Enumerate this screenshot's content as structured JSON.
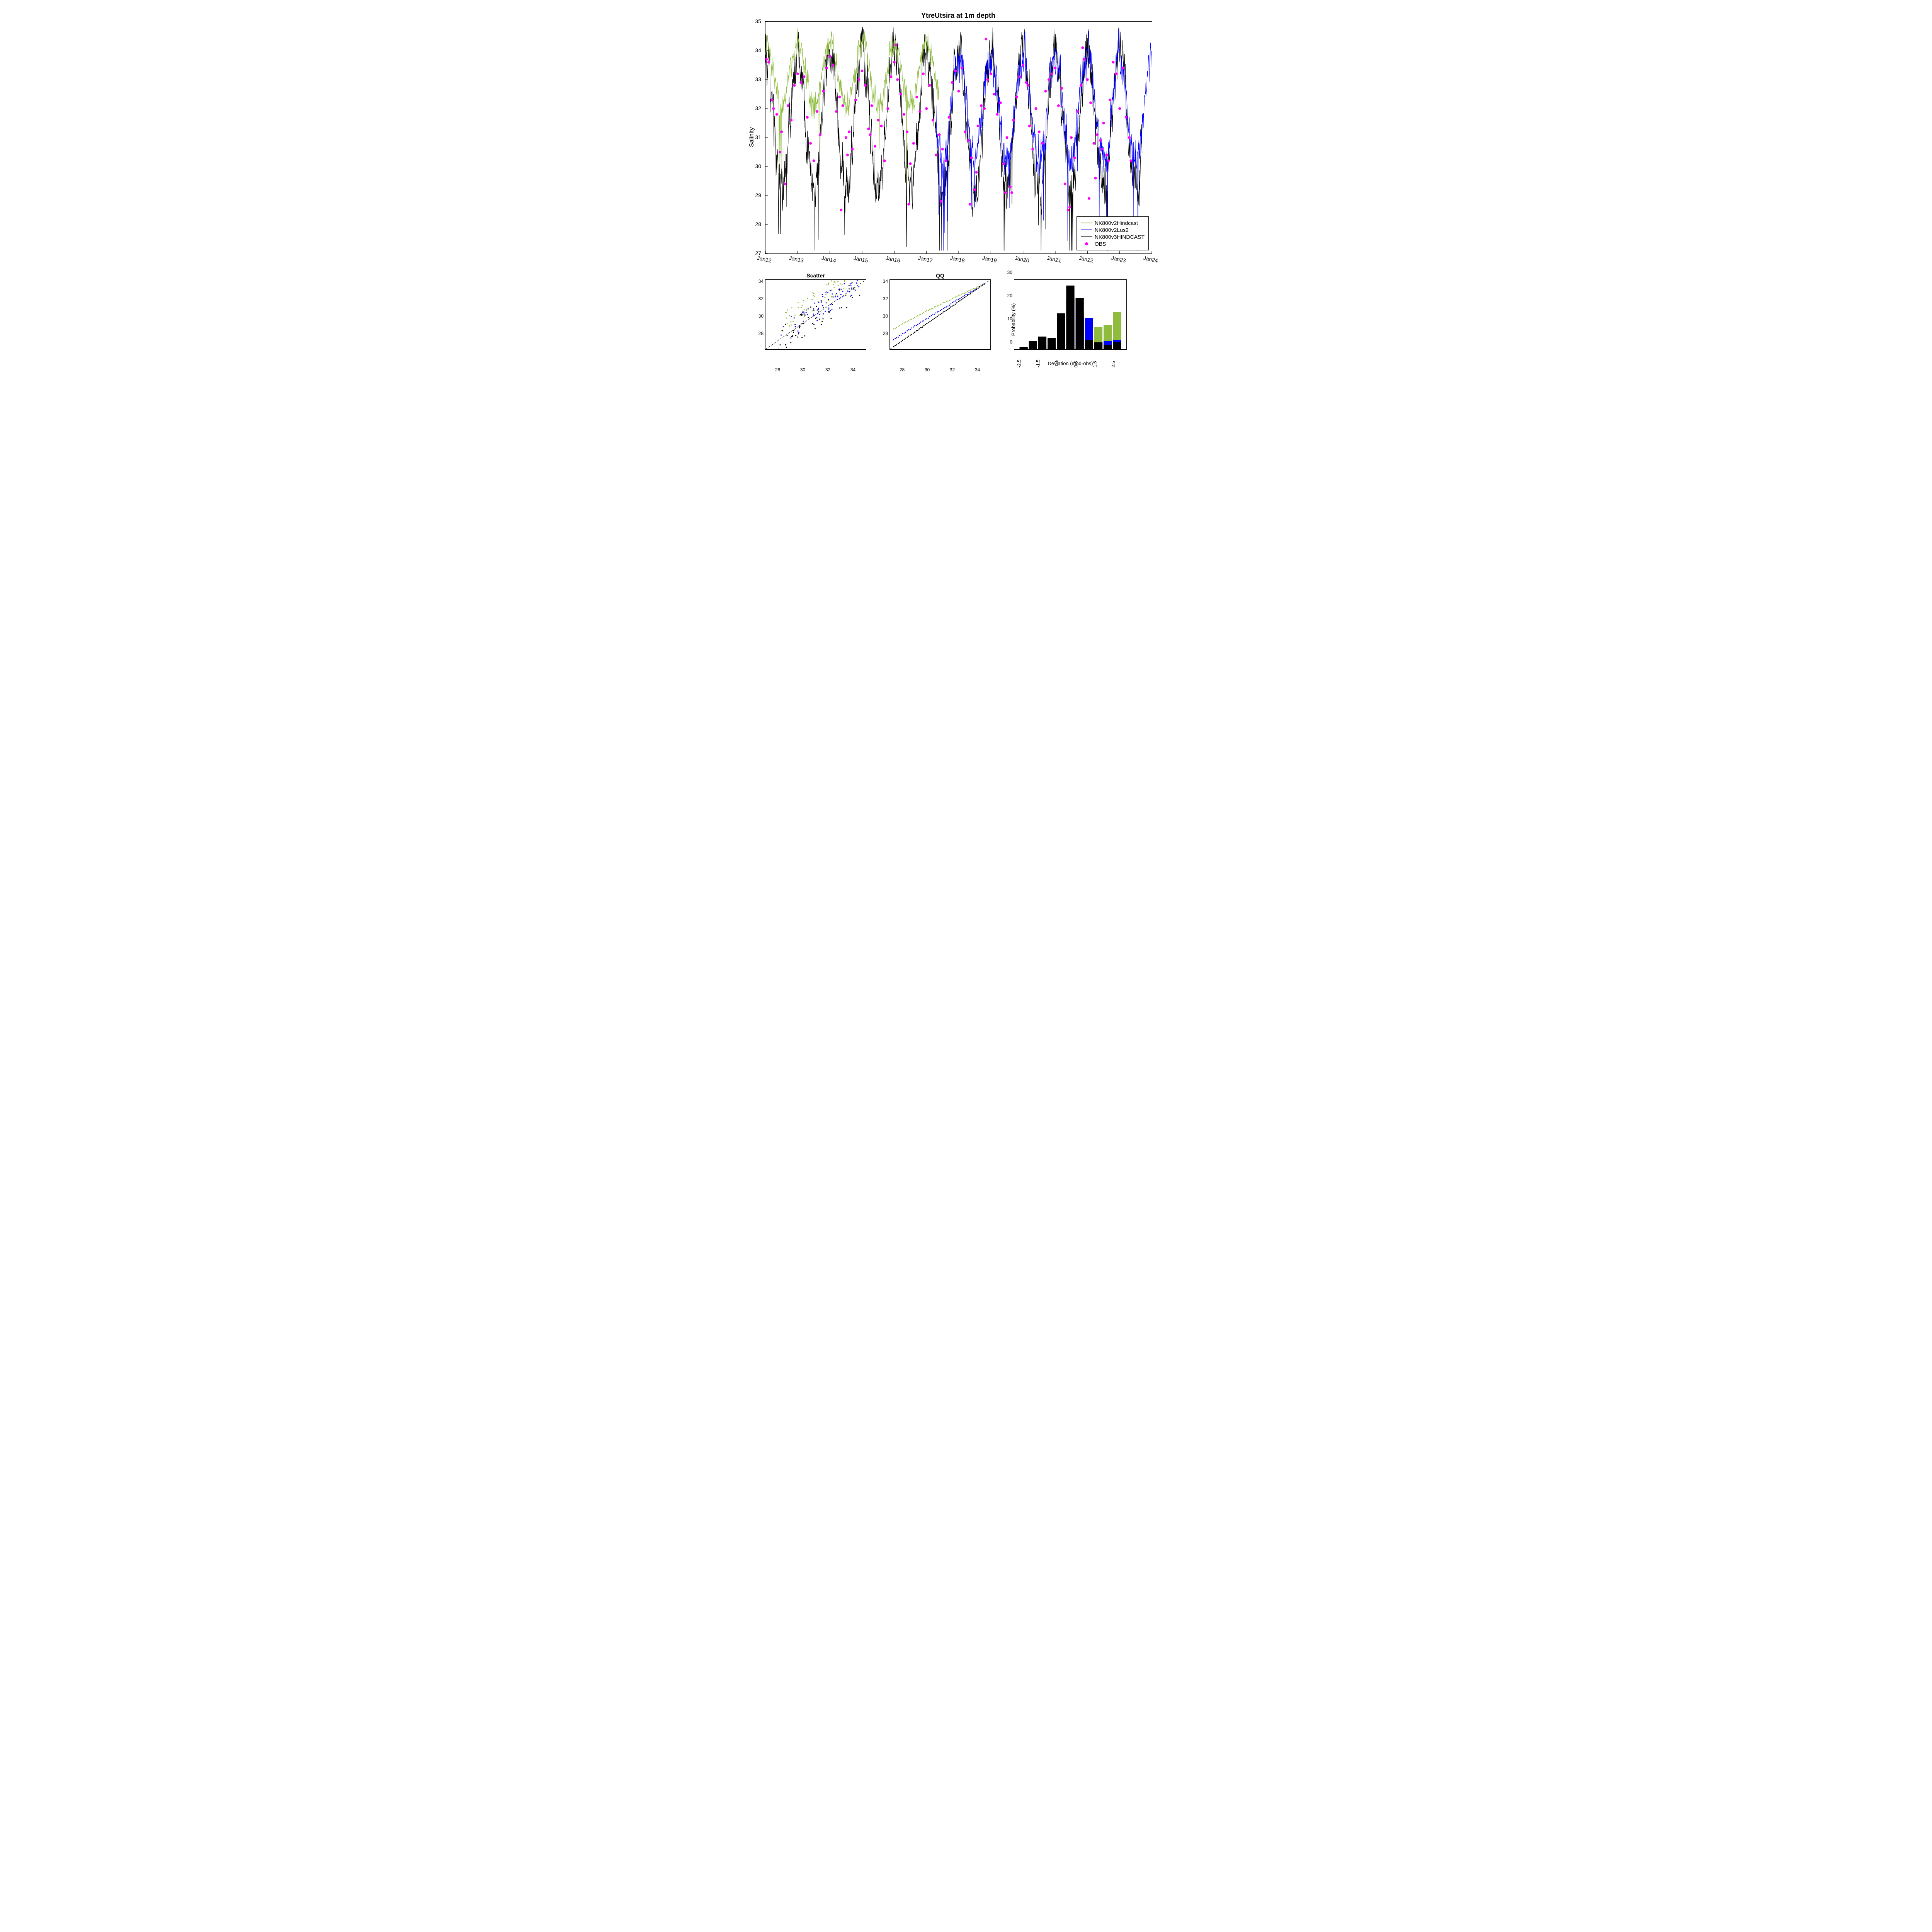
{
  "main": {
    "title": "YtreUtsira at 1m depth",
    "ylabel": "Salinity",
    "ylim": [
      27,
      35
    ],
    "yticks": [
      27,
      28,
      29,
      30,
      31,
      32,
      33,
      34,
      35
    ],
    "xlim": [
      2012,
      2024
    ],
    "xticks": [
      "Jan12",
      "Jan13",
      "Jan14",
      "Jan15",
      "Jan16",
      "Jan17",
      "Jan18",
      "Jan19",
      "Jan20",
      "Jan21",
      "Jan22",
      "Jan23",
      "Jan24"
    ],
    "xtick_years": [
      2012,
      2013,
      2014,
      2015,
      2016,
      2017,
      2018,
      2019,
      2020,
      2021,
      2022,
      2023,
      2024
    ],
    "background_color": "#ffffff",
    "series": {
      "green": {
        "color": "#8fbc3f",
        "label": "NK800v2Hindcast",
        "xmin": 2012,
        "xmax": 2017.4
      },
      "blue": {
        "color": "#0000ff",
        "label": "NK800v2Lus2",
        "xmin": 2017.3,
        "xmax": 2024
      },
      "black": {
        "color": "#000000",
        "label": "NK800v3HINDCAST",
        "xmin": 2012,
        "xmax": 2023.7
      },
      "obs": {
        "color": "#ff00ff",
        "label": "OBS"
      }
    },
    "obs_points": [
      [
        2012.03,
        33.7
      ],
      [
        2012.1,
        33.6
      ],
      [
        2012.2,
        32.3
      ],
      [
        2012.25,
        32.0
      ],
      [
        2012.35,
        31.8
      ],
      [
        2012.45,
        30.5
      ],
      [
        2012.5,
        31.2
      ],
      [
        2012.6,
        29.4
      ],
      [
        2012.7,
        32.1
      ],
      [
        2012.8,
        31.6
      ],
      [
        2012.9,
        32.8
      ],
      [
        2013.0,
        33.2
      ],
      [
        2013.1,
        32.9
      ],
      [
        2013.2,
        33.1
      ],
      [
        2013.3,
        31.7
      ],
      [
        2013.4,
        30.8
      ],
      [
        2013.5,
        30.2
      ],
      [
        2013.6,
        31.9
      ],
      [
        2013.7,
        31.1
      ],
      [
        2013.8,
        32.6
      ],
      [
        2013.9,
        33.4
      ],
      [
        2014.0,
        33.8
      ],
      [
        2014.1,
        33.5
      ],
      [
        2014.2,
        31.9
      ],
      [
        2014.3,
        32.4
      ],
      [
        2014.35,
        28.5
      ],
      [
        2014.4,
        32.1
      ],
      [
        2014.5,
        31.0
      ],
      [
        2014.55,
        30.4
      ],
      [
        2014.6,
        31.2
      ],
      [
        2014.7,
        30.6
      ],
      [
        2014.8,
        32.3
      ],
      [
        2014.9,
        33.0
      ],
      [
        2015.0,
        33.3
      ],
      [
        2015.1,
        32.8
      ],
      [
        2015.2,
        31.3
      ],
      [
        2015.25,
        31.1
      ],
      [
        2015.3,
        32.1
      ],
      [
        2015.4,
        30.7
      ],
      [
        2015.5,
        31.6
      ],
      [
        2015.6,
        31.4
      ],
      [
        2015.7,
        30.2
      ],
      [
        2015.8,
        32.0
      ],
      [
        2015.9,
        33.1
      ],
      [
        2016.0,
        33.6
      ],
      [
        2016.05,
        34.2
      ],
      [
        2016.1,
        33.0
      ],
      [
        2016.2,
        32.5
      ],
      [
        2016.3,
        31.8
      ],
      [
        2016.4,
        31.2
      ],
      [
        2016.45,
        28.7
      ],
      [
        2016.5,
        30.1
      ],
      [
        2016.6,
        30.8
      ],
      [
        2016.7,
        32.4
      ],
      [
        2016.8,
        31.9
      ],
      [
        2016.9,
        33.2
      ],
      [
        2017.0,
        32.0
      ],
      [
        2017.1,
        32.8
      ],
      [
        2017.2,
        31.6
      ],
      [
        2017.3,
        30.4
      ],
      [
        2017.4,
        31.1
      ],
      [
        2017.45,
        28.8
      ],
      [
        2017.5,
        30.6
      ],
      [
        2017.6,
        30.2
      ],
      [
        2017.7,
        31.7
      ],
      [
        2017.8,
        32.9
      ],
      [
        2017.9,
        33.3
      ],
      [
        2018.0,
        32.6
      ],
      [
        2018.1,
        33.4
      ],
      [
        2018.2,
        31.2
      ],
      [
        2018.3,
        30.9
      ],
      [
        2018.35,
        28.7
      ],
      [
        2018.4,
        30.3
      ],
      [
        2018.5,
        29.2
      ],
      [
        2018.55,
        29.8
      ],
      [
        2018.6,
        31.4
      ],
      [
        2018.7,
        32.1
      ],
      [
        2018.8,
        32.0
      ],
      [
        2018.85,
        34.4
      ],
      [
        2018.9,
        33.0
      ],
      [
        2019.0,
        33.2
      ],
      [
        2019.1,
        32.5
      ],
      [
        2019.2,
        31.8
      ],
      [
        2019.3,
        32.2
      ],
      [
        2019.4,
        30.1
      ],
      [
        2019.45,
        29.1
      ],
      [
        2019.5,
        31.0
      ],
      [
        2019.6,
        29.3
      ],
      [
        2019.65,
        29.1
      ],
      [
        2019.7,
        31.6
      ],
      [
        2019.8,
        32.4
      ],
      [
        2019.9,
        33.1
      ],
      [
        2020.0,
        33.5
      ],
      [
        2020.1,
        32.9
      ],
      [
        2020.15,
        32.8
      ],
      [
        2020.2,
        31.4
      ],
      [
        2020.3,
        30.6
      ],
      [
        2020.4,
        32.0
      ],
      [
        2020.5,
        31.2
      ],
      [
        2020.6,
        30.8
      ],
      [
        2020.7,
        32.6
      ],
      [
        2020.8,
        33.0
      ],
      [
        2020.9,
        33.2
      ],
      [
        2021.0,
        33.4
      ],
      [
        2021.1,
        32.1
      ],
      [
        2021.2,
        32.7
      ],
      [
        2021.3,
        29.4
      ],
      [
        2021.4,
        28.5
      ],
      [
        2021.45,
        28.6
      ],
      [
        2021.5,
        31.0
      ],
      [
        2021.6,
        30.3
      ],
      [
        2021.7,
        31.9
      ],
      [
        2021.8,
        32.8
      ],
      [
        2021.85,
        34.1
      ],
      [
        2021.9,
        33.7
      ],
      [
        2022.0,
        33.0
      ],
      [
        2022.05,
        28.9
      ],
      [
        2022.1,
        32.2
      ],
      [
        2022.2,
        30.8
      ],
      [
        2022.25,
        29.6
      ],
      [
        2022.3,
        31.1
      ],
      [
        2022.4,
        30.9
      ],
      [
        2022.45,
        30.6
      ],
      [
        2022.5,
        31.5
      ],
      [
        2022.6,
        30.4
      ],
      [
        2022.65,
        30.2
      ],
      [
        2022.7,
        32.3
      ],
      [
        2022.8,
        33.6
      ],
      [
        2022.9,
        33.2
      ],
      [
        2023.0,
        32.0
      ],
      [
        2023.1,
        33.4
      ],
      [
        2023.2,
        31.7
      ],
      [
        2023.3,
        31.0
      ],
      [
        2023.35,
        30.2
      ]
    ]
  },
  "scatter": {
    "title": "Scatter",
    "xlim": [
      27,
      35
    ],
    "ylim": [
      27,
      35
    ],
    "xticks": [
      28,
      30,
      32,
      34
    ],
    "yticks": [
      28,
      30,
      32,
      34
    ],
    "diag_color": "#000000",
    "point_colors": {
      "green": "#8fbc3f",
      "blue": "#0000ff",
      "black": "#000000"
    },
    "n_points_each": 70
  },
  "qq": {
    "title": "QQ",
    "xlim": [
      27,
      35
    ],
    "ylim": [
      27,
      35
    ],
    "xticks": [
      28,
      30,
      32,
      34
    ],
    "yticks": [
      28,
      30,
      32,
      34
    ],
    "diag_color": "#000000",
    "curves": {
      "green": {
        "color": "#8fbc3f",
        "offset": 2.0
      },
      "blue": {
        "color": "#0000ff",
        "offset": 0.8
      },
      "black": {
        "color": "#000000",
        "offset": 0.0
      }
    }
  },
  "hist": {
    "ylabel": "Probability (%)",
    "xlabel": "Deviation (mod-obs)",
    "xlim": [
      -3,
      3
    ],
    "ylim": [
      0,
      30
    ],
    "yticks": [
      0,
      10,
      20,
      30
    ],
    "xticks": [
      -2.5,
      -1.5,
      -0.5,
      0.5,
      1.5,
      2.5
    ],
    "bin_centers": [
      -2.5,
      -2,
      -1.5,
      -1,
      -0.5,
      0,
      0.5,
      1,
      1.5,
      2,
      2.5
    ],
    "bar_half_width": 0.22,
    "series": {
      "green": {
        "color": "#8fbc3f",
        "values": [
          0,
          0,
          0,
          0,
          0,
          1,
          16,
          12,
          9.5,
          10.5,
          16
        ]
      },
      "blue": {
        "color": "#0000ff",
        "values": [
          0,
          0.5,
          1,
          2,
          10.5,
          21.5,
          13.5,
          13.5,
          3,
          3.5,
          4
        ]
      },
      "black": {
        "color": "#000000",
        "values": [
          1,
          3.5,
          5.5,
          5,
          15.5,
          27.5,
          22,
          4,
          3,
          2,
          3
        ]
      }
    }
  }
}
